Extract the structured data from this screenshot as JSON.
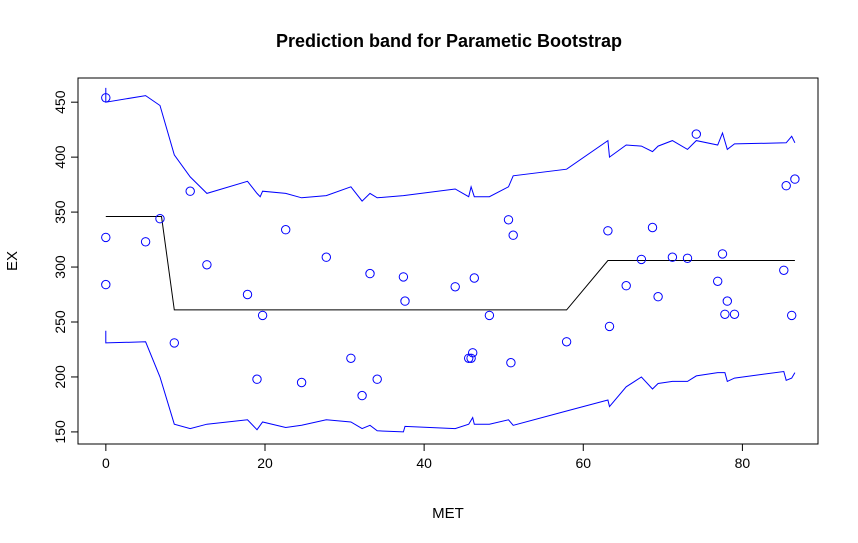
{
  "chart_data": {
    "type": "scatter",
    "title": "Prediction band for Parametic Bootstrap",
    "xlabel": "MET",
    "ylabel": "EX",
    "xlim": [
      -3.5,
      89.5
    ],
    "ylim": [
      139,
      472
    ],
    "xticks": [
      0,
      20,
      40,
      60,
      80
    ],
    "yticks": [
      150,
      200,
      250,
      300,
      350,
      400,
      450
    ],
    "grid": false,
    "colors": {
      "points": "#0000ff",
      "band": "#0000ff",
      "fit": "#000000",
      "axes": "#000000"
    },
    "points": [
      [
        0,
        454
      ],
      [
        0,
        327
      ],
      [
        0,
        284
      ],
      [
        5,
        323
      ],
      [
        6.8,
        344
      ],
      [
        8.6,
        231
      ],
      [
        10.6,
        369
      ],
      [
        12.7,
        302
      ],
      [
        17.8,
        275
      ],
      [
        19,
        198
      ],
      [
        19.7,
        256
      ],
      [
        22.6,
        334
      ],
      [
        24.6,
        195
      ],
      [
        27.7,
        309
      ],
      [
        30.8,
        217
      ],
      [
        32.2,
        183
      ],
      [
        33.2,
        294
      ],
      [
        34.1,
        198
      ],
      [
        37.4,
        291
      ],
      [
        37.6,
        269
      ],
      [
        43.9,
        282
      ],
      [
        45.6,
        217
      ],
      [
        45.9,
        217
      ],
      [
        46.1,
        222
      ],
      [
        46.3,
        290
      ],
      [
        48.2,
        256
      ],
      [
        50.6,
        343
      ],
      [
        50.9,
        213
      ],
      [
        51.2,
        329
      ],
      [
        57.9,
        232
      ],
      [
        63.1,
        333
      ],
      [
        63.3,
        246
      ],
      [
        65.4,
        283
      ],
      [
        67.3,
        307
      ],
      [
        68.7,
        336
      ],
      [
        69.4,
        273
      ],
      [
        71.2,
        309
      ],
      [
        73.1,
        308
      ],
      [
        74.2,
        421
      ],
      [
        76.9,
        287
      ],
      [
        77.5,
        312
      ],
      [
        77.8,
        257
      ],
      [
        78.1,
        269
      ],
      [
        79,
        257
      ],
      [
        85.2,
        297
      ],
      [
        85.5,
        374
      ],
      [
        86.2,
        256
      ],
      [
        86.6,
        380
      ]
    ],
    "fit_line": [
      [
        0,
        346
      ],
      [
        7,
        346
      ],
      [
        8.6,
        261
      ],
      [
        57.9,
        261
      ],
      [
        63.1,
        306
      ],
      [
        86.6,
        306
      ]
    ],
    "upper_band": [
      [
        0,
        450
      ],
      [
        0,
        463
      ],
      [
        0,
        450
      ],
      [
        5,
        456
      ],
      [
        6.8,
        447
      ],
      [
        8.6,
        402
      ],
      [
        10.6,
        382
      ],
      [
        12.7,
        367
      ],
      [
        17.8,
        378
      ],
      [
        19,
        367
      ],
      [
        19.4,
        364
      ],
      [
        19.7,
        369
      ],
      [
        22.6,
        367
      ],
      [
        24.6,
        363
      ],
      [
        27.7,
        365
      ],
      [
        30.8,
        373
      ],
      [
        32.2,
        360
      ],
      [
        33.2,
        367
      ],
      [
        34.1,
        363
      ],
      [
        37.4,
        365
      ],
      [
        43.9,
        371
      ],
      [
        45.6,
        364
      ],
      [
        45.9,
        373
      ],
      [
        46.3,
        364
      ],
      [
        48.2,
        364
      ],
      [
        50.6,
        373
      ],
      [
        51.2,
        383
      ],
      [
        57.9,
        389
      ],
      [
        63.1,
        415
      ],
      [
        63.3,
        400
      ],
      [
        65.4,
        411
      ],
      [
        67.3,
        410
      ],
      [
        68.7,
        405
      ],
      [
        69.4,
        410
      ],
      [
        71.2,
        415
      ],
      [
        73.1,
        407
      ],
      [
        74.2,
        415
      ],
      [
        76.9,
        411
      ],
      [
        77.5,
        422
      ],
      [
        78.1,
        407
      ],
      [
        79,
        412
      ],
      [
        85.5,
        413
      ],
      [
        86.2,
        419
      ],
      [
        86.6,
        413
      ]
    ],
    "lower_band": [
      [
        0,
        242
      ],
      [
        0,
        231
      ],
      [
        5,
        232
      ],
      [
        6.8,
        200
      ],
      [
        8.6,
        157
      ],
      [
        10.6,
        153
      ],
      [
        12.7,
        157
      ],
      [
        17.8,
        161
      ],
      [
        19,
        152
      ],
      [
        19.7,
        159
      ],
      [
        22.6,
        154
      ],
      [
        24.6,
        156
      ],
      [
        27.7,
        161
      ],
      [
        30.8,
        159
      ],
      [
        32.2,
        153
      ],
      [
        33.2,
        156
      ],
      [
        34.1,
        151
      ],
      [
        37.4,
        150
      ],
      [
        37.6,
        155
      ],
      [
        43.9,
        153
      ],
      [
        45.6,
        157
      ],
      [
        46.1,
        163
      ],
      [
        46.3,
        157
      ],
      [
        48.2,
        157
      ],
      [
        50.6,
        161
      ],
      [
        51.2,
        156
      ],
      [
        57.9,
        169
      ],
      [
        63.1,
        179
      ],
      [
        63.3,
        173
      ],
      [
        65.4,
        191
      ],
      [
        67.3,
        200
      ],
      [
        68.7,
        189
      ],
      [
        69.4,
        194
      ],
      [
        71.2,
        196
      ],
      [
        73.1,
        196
      ],
      [
        74.2,
        201
      ],
      [
        76.9,
        204
      ],
      [
        77.8,
        204
      ],
      [
        78.1,
        196
      ],
      [
        79,
        199
      ],
      [
        85.2,
        205
      ],
      [
        85.5,
        197
      ],
      [
        86.2,
        199
      ],
      [
        86.6,
        204
      ]
    ]
  }
}
